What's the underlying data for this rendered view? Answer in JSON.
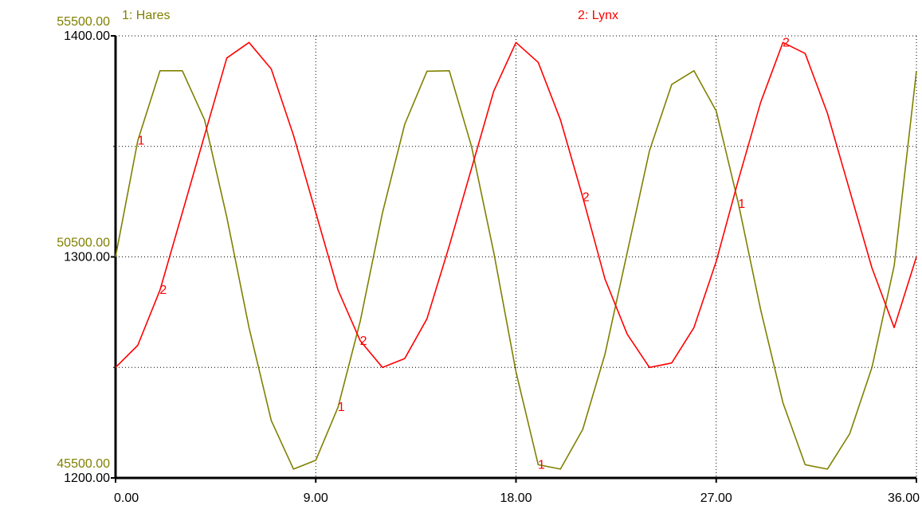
{
  "chart_data": {
    "type": "line",
    "x": [
      0,
      1,
      2,
      3,
      4,
      5,
      6,
      7,
      8,
      9,
      10,
      11,
      12,
      13,
      14,
      15,
      16,
      17,
      18,
      19,
      20,
      21,
      22,
      23,
      24,
      25,
      26,
      27,
      28,
      29,
      30,
      31,
      32,
      33,
      34,
      35,
      36
    ],
    "xticks": [
      "0.00",
      "9.00",
      "18.00",
      "27.00",
      "36.00"
    ],
    "xlim": [
      0,
      36
    ],
    "y_axes": [
      {
        "ticks": [
          "45500.00",
          "50500.00",
          "55500.00"
        ],
        "ylim": [
          45500,
          55500
        ],
        "color": "#808000"
      },
      {
        "ticks": [
          "1200.00",
          "1300.00",
          "1400.00"
        ],
        "ylim": [
          1200,
          1400
        ],
        "color": "#000000"
      }
    ],
    "series": [
      {
        "name": "1: Hares",
        "marker": "1",
        "color": "#808000",
        "axis": 0,
        "values": [
          50500,
          53130,
          54710,
          54710,
          53600,
          51400,
          48900,
          46800,
          45700,
          45900,
          47100,
          49050,
          51500,
          53500,
          54700,
          54710,
          53000,
          50600,
          47900,
          45800,
          45700,
          46600,
          48300,
          50600,
          52900,
          54400,
          54710,
          53800,
          51700,
          49300,
          47200,
          45800,
          45700,
          46500,
          48000,
          50300,
          54700
        ]
      },
      {
        "name": "2: Lynx",
        "marker": "2",
        "color": "#ff0000",
        "axis": 1,
        "values": [
          1250,
          1260,
          1285,
          1320,
          1355,
          1390,
          1397,
          1385,
          1355,
          1320,
          1285,
          1262,
          1250,
          1254,
          1272,
          1305,
          1340,
          1375,
          1397,
          1388,
          1362,
          1327,
          1290,
          1265,
          1250,
          1252,
          1268,
          1298,
          1335,
          1370,
          1397,
          1392,
          1365,
          1330,
          1295,
          1268,
          1300
        ]
      }
    ],
    "legend": "top",
    "grid": true
  }
}
